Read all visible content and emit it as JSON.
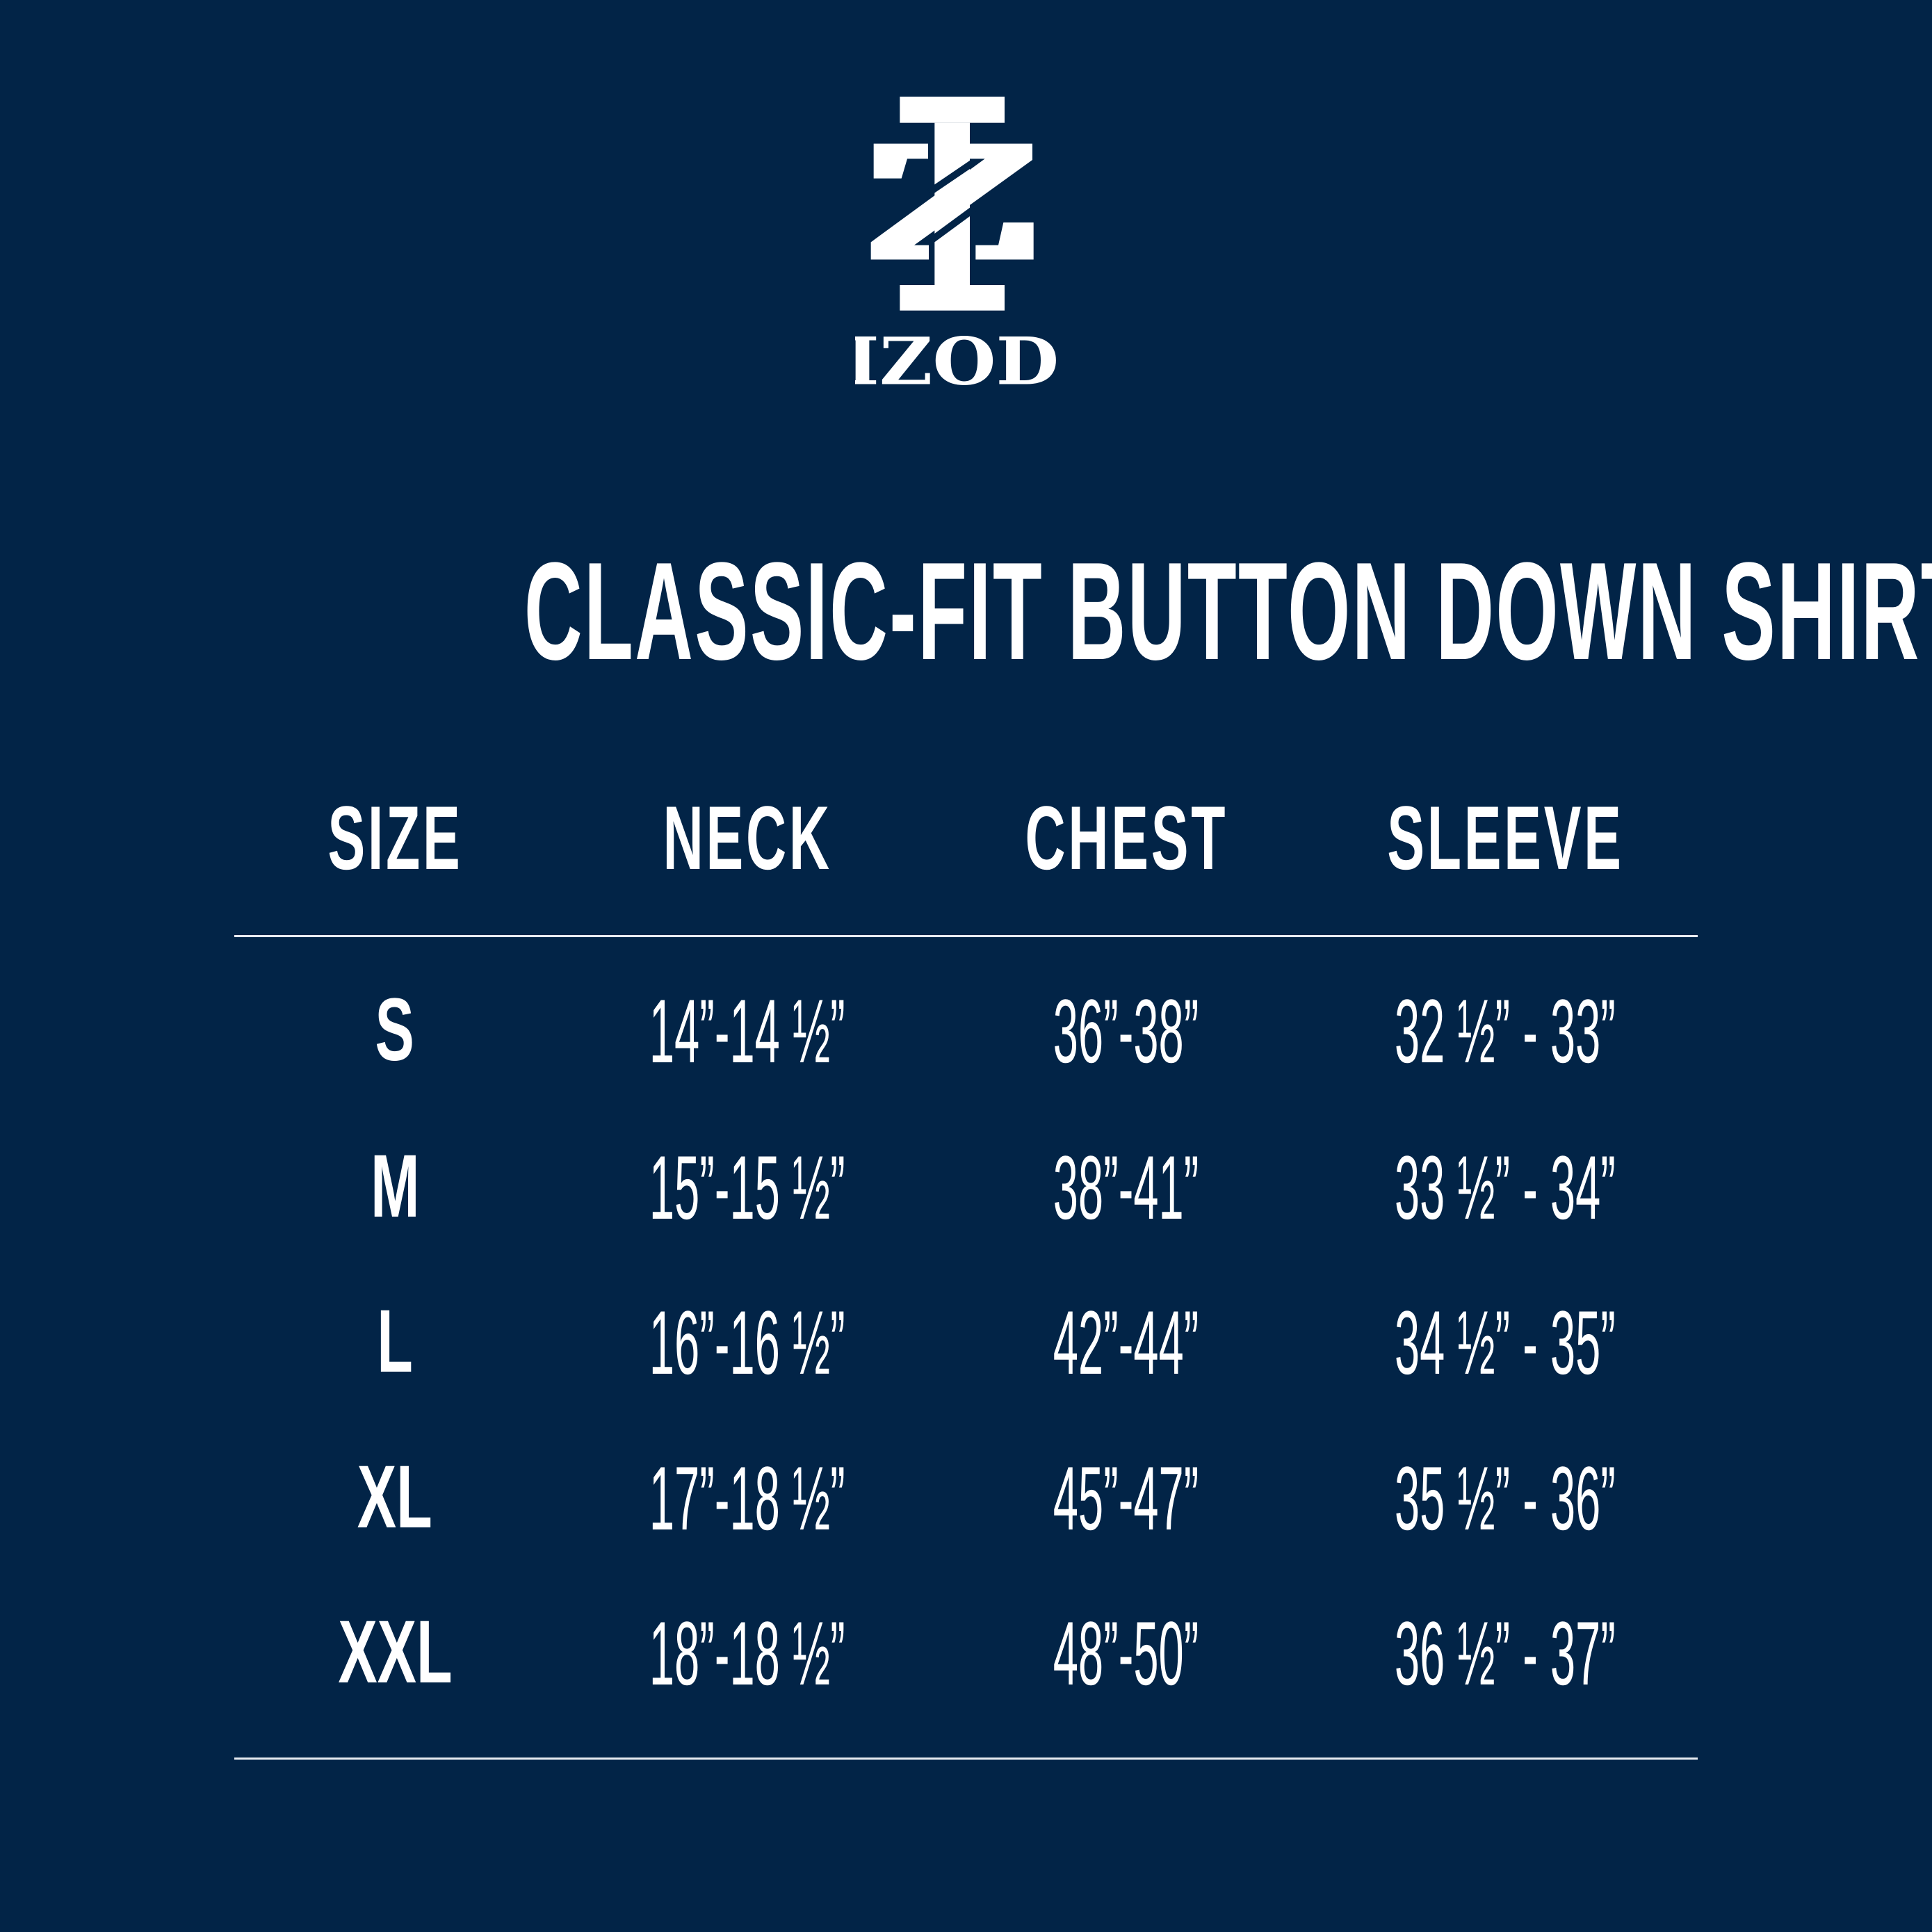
{
  "brand": {
    "name": "IZOD",
    "background": "#022447",
    "foreground": "#ffffff"
  },
  "title": "CLASSIC-FIT BUTTON DOWN SHIRT",
  "table": {
    "headers": [
      "SIZE",
      "NECK",
      "CHEST",
      "SLEEVE"
    ],
    "rows": [
      {
        "size": "S",
        "neck": "14”-14 ½”",
        "chest": "36”-38”",
        "sleeve": "32 ½” - 33”"
      },
      {
        "size": "M",
        "neck": "15”-15 ½”",
        "chest": "38”-41”",
        "sleeve": "33 ½” - 34”"
      },
      {
        "size": "L",
        "neck": "16”-16 ½”",
        "chest": "42”-44”",
        "sleeve": "34 ½” - 35”"
      },
      {
        "size": "XL",
        "neck": "17”-18 ½”",
        "chest": "45”-47”",
        "sleeve": "35 ½” - 36”"
      },
      {
        "size": "XXL",
        "neck": "18”-18 ½”",
        "chest": "48”-50”",
        "sleeve": "36 ½” - 37”"
      }
    ]
  }
}
